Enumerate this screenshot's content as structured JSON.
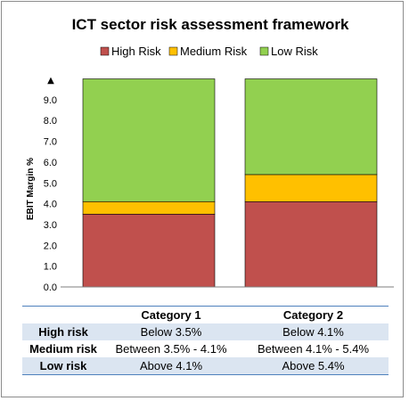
{
  "chart_data": {
    "type": "bar",
    "stacked": true,
    "title": "ICT sector risk assessment framework",
    "ylabel": "EBIT Margin %",
    "xlabel": "",
    "ylim": [
      0,
      10
    ],
    "y_ticks": [
      "0.0",
      "1.0",
      "2.0",
      "3.0",
      "4.0",
      "5.0",
      "6.0",
      "7.0",
      "8.0",
      "9.0"
    ],
    "axis_arrow": "▲",
    "categories": [
      "Category 1",
      "Category 2"
    ],
    "series": [
      {
        "name": "High Risk",
        "color": "#c0504d",
        "values": [
          3.5,
          4.1
        ]
      },
      {
        "name": "Medium Risk",
        "color": "#ffc000",
        "values": [
          0.6,
          1.3
        ]
      },
      {
        "name": "Low Risk",
        "color": "#92d050",
        "values": [
          5.9,
          4.6
        ]
      }
    ],
    "legend_position": "top",
    "grid": false
  },
  "table": {
    "headers": [
      "",
      "Category 1",
      "Category 2"
    ],
    "rows": [
      {
        "label": "High risk",
        "cells": [
          "Below 3.5%",
          "Below 4.1%"
        ]
      },
      {
        "label": "Medium risk",
        "cells": [
          "Between 3.5% - 4.1%",
          "Between 4.1% - 5.4%"
        ]
      },
      {
        "label": "Low risk",
        "cells": [
          "Above 4.1%",
          "Above 5.4%"
        ]
      }
    ]
  }
}
